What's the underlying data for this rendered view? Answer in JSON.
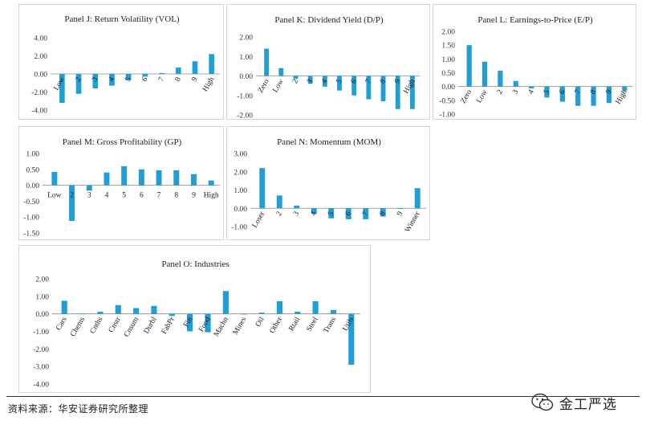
{
  "colors": {
    "bar": "#1f9ed8",
    "axis": "#8c8c8c",
    "text": "#222222"
  },
  "footer": {
    "source": "资料来源：华安证券研究所整理",
    "watermark": "金工严选",
    "watermark_icon": "wechat-icon"
  },
  "chart_data": [
    {
      "id": "J",
      "type": "bar",
      "title": "Panel J: Return Volatility (VOL)",
      "categories": [
        "Low",
        "2",
        "3",
        "4",
        "5",
        "6",
        "7",
        "8",
        "9",
        "High"
      ],
      "values": [
        -3.2,
        -2.2,
        -1.6,
        -1.3,
        -0.7,
        -0.3,
        0.1,
        0.7,
        1.4,
        2.2
      ],
      "ylim": [
        -4,
        4
      ],
      "yticks": [
        "4.00",
        "2.00",
        "0.00",
        "-2.00",
        "-4.00"
      ],
      "label_rotation": -60
    },
    {
      "id": "K",
      "type": "bar",
      "title": "Panel K: Dividend Yield (D/P)",
      "categories": [
        "Zero",
        "Low",
        "2",
        "3",
        "4",
        "5",
        "6",
        "7",
        "8",
        "9",
        "High"
      ],
      "values": [
        1.4,
        0.4,
        -0.15,
        -0.4,
        -0.55,
        -0.75,
        -1.0,
        -1.2,
        -1.3,
        -1.7,
        -1.7
      ],
      "ylim": [
        -2,
        2
      ],
      "yticks": [
        "2.00",
        "1.00",
        "0.00",
        "-1.00",
        "-2.00"
      ],
      "label_rotation": -60
    },
    {
      "id": "L",
      "type": "bar",
      "title": "Panel L: Earnings-to-Price (E/P)",
      "categories": [
        "Zero",
        "Low",
        "2",
        "3",
        "4",
        "5",
        "6",
        "7",
        "8",
        "9",
        "High"
      ],
      "values": [
        1.5,
        0.9,
        0.57,
        0.2,
        -0.07,
        -0.4,
        -0.55,
        -0.7,
        -0.7,
        -0.6,
        -0.15
      ],
      "ylim": [
        -1,
        2
      ],
      "yticks": [
        "2.00",
        "1.50",
        "1.00",
        "0.50",
        "0.00",
        "-0.50",
        "-1.00"
      ],
      "label_rotation": -60
    },
    {
      "id": "M",
      "type": "bar",
      "title": "Panel M: Gross Profitability (GP)",
      "categories": [
        "Low",
        "2",
        "3",
        "4",
        "5",
        "6",
        "7",
        "8",
        "9",
        "High"
      ],
      "values": [
        0.42,
        -1.12,
        -0.17,
        0.4,
        0.6,
        0.5,
        0.47,
        0.47,
        0.35,
        0.15
      ],
      "ylim": [
        -1.5,
        1
      ],
      "yticks": [
        "1.00",
        "0.50",
        "0.00",
        "-0.50",
        "-1.00",
        "-1.50"
      ],
      "label_rotation": 0
    },
    {
      "id": "N",
      "type": "bar",
      "title": "Panel N: Momentum (MOM)",
      "categories": [
        "Loser",
        "2",
        "3",
        "4",
        "5",
        "6",
        "7",
        "8",
        "9",
        "Winner"
      ],
      "values": [
        2.2,
        0.7,
        0.15,
        -0.3,
        -0.55,
        -0.6,
        -0.6,
        -0.45,
        -0.02,
        1.1
      ],
      "ylim": [
        -1,
        3
      ],
      "yticks": [
        "3.00",
        "2.00",
        "1.00",
        "0.00",
        "-1.00"
      ],
      "label_rotation": -60
    },
    {
      "id": "O",
      "type": "bar",
      "title": "Panel O: Industries",
      "categories": [
        "Cars",
        "Chems",
        "Cnths",
        "Cnstr",
        "Cnsum",
        "Durbl",
        "FabPr",
        "Fin",
        "Food",
        "Machn",
        "Mines",
        "Oil",
        "Other",
        "Rtail",
        "Steel",
        "Trans",
        "Utils"
      ],
      "values": [
        0.75,
        0.02,
        0.12,
        0.5,
        0.33,
        0.45,
        -0.12,
        -1.0,
        -1.05,
        1.3,
        -0.03,
        0.07,
        0.72,
        0.12,
        0.72,
        0.22,
        -2.9
      ],
      "ylim": [
        -4,
        2
      ],
      "yticks": [
        "2.00",
        "1.00",
        "0.00",
        "-1.00",
        "-2.00",
        "-3.00",
        "-4.00"
      ],
      "label_rotation": -60
    }
  ]
}
